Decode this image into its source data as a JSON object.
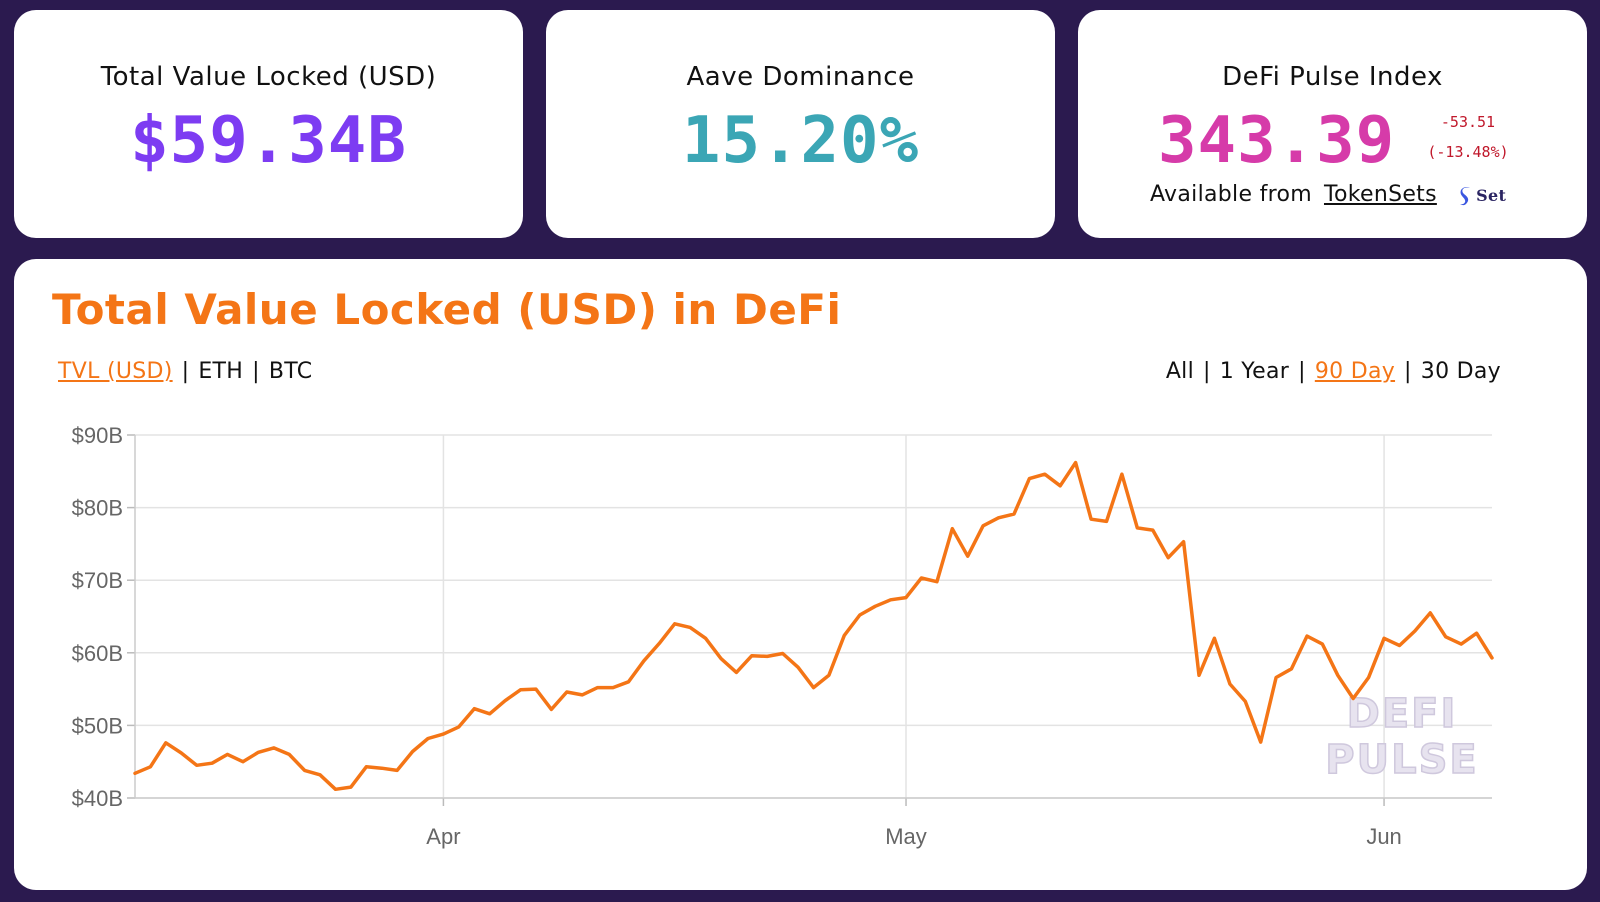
{
  "colors": {
    "background": "#2b1a4f",
    "tvl_value": "#7d3cf2",
    "aave_value": "#3ba6b5",
    "dpi_value": "#d63ba9",
    "dpi_change": "#c0182b",
    "accent_orange": "#f47516",
    "grid": "#e3e3e3",
    "watermark": "#ddd8e6"
  },
  "stats": {
    "tvl": {
      "label": "Total Value Locked (USD)",
      "value": "$59.34B"
    },
    "aave": {
      "label": "Aave Dominance",
      "value": "15.20%"
    },
    "dpi": {
      "label": "DeFi Pulse Index",
      "value": "343.39",
      "change_abs": "-53.51",
      "change_pct": "(-13.48%)",
      "available_text": "Available from",
      "link_text": "TokenSets",
      "logo_text": "Set",
      "logo_icon": "set-logo-icon"
    }
  },
  "chart_section": {
    "title": "Total Value Locked (USD) in DeFi",
    "metric_toggles": [
      {
        "label": "TVL (USD)",
        "active": true
      },
      {
        "label": "ETH",
        "active": false
      },
      {
        "label": "BTC",
        "active": false
      }
    ],
    "range_toggles": [
      {
        "label": "All",
        "active": false
      },
      {
        "label": "1 Year",
        "active": false
      },
      {
        "label": "90 Day",
        "active": true
      },
      {
        "label": "30 Day",
        "active": false
      }
    ],
    "watermark": [
      "DEFI",
      "PULSE"
    ]
  },
  "chart_data": {
    "type": "line",
    "title": "Total Value Locked (USD) in DeFi",
    "xlabel": "",
    "ylabel": "",
    "ylim": [
      40,
      90
    ],
    "y_ticks": [
      90,
      80,
      70,
      60,
      50,
      40
    ],
    "y_tick_labels": [
      "$90B",
      "$80B",
      "$70B",
      "$60B",
      "$50B",
      "$40B"
    ],
    "x_ticks": [
      {
        "label": "Apr",
        "day": 20
      },
      {
        "label": "May",
        "day": 50
      },
      {
        "label": "Jun",
        "day": 81
      }
    ],
    "grid": true,
    "legend": "none",
    "series": [
      {
        "values": [
          43.4,
          44.3,
          47.6,
          46.2,
          44.5,
          44.8,
          46.0,
          45.0,
          46.3,
          46.9,
          46.0,
          43.8,
          43.2,
          41.2,
          41.5,
          44.3,
          44.1,
          43.8,
          46.4,
          48.2,
          48.8,
          49.8,
          52.3,
          51.6,
          53.4,
          54.9,
          55.0,
          52.2,
          54.6,
          54.2,
          55.2,
          55.2,
          56.0,
          58.9,
          61.3,
          64.0,
          63.5,
          62.0,
          59.2,
          57.3,
          59.6,
          59.5,
          59.9,
          58.0,
          55.2,
          56.9,
          62.4,
          65.2,
          66.4,
          67.3,
          67.6,
          70.3,
          69.8,
          77.1,
          73.3,
          77.5,
          78.6,
          79.1,
          84.0,
          84.6,
          83.0,
          86.2,
          78.4,
          78.1,
          84.6,
          77.2,
          76.9,
          73.1,
          75.3,
          56.9,
          62.0,
          55.7,
          53.3,
          47.7,
          56.6,
          57.8,
          62.3,
          61.2,
          56.9,
          53.7,
          56.6,
          62.0,
          61.0,
          63.0,
          65.5,
          62.2,
          61.2,
          62.7,
          59.3
        ]
      }
    ]
  }
}
